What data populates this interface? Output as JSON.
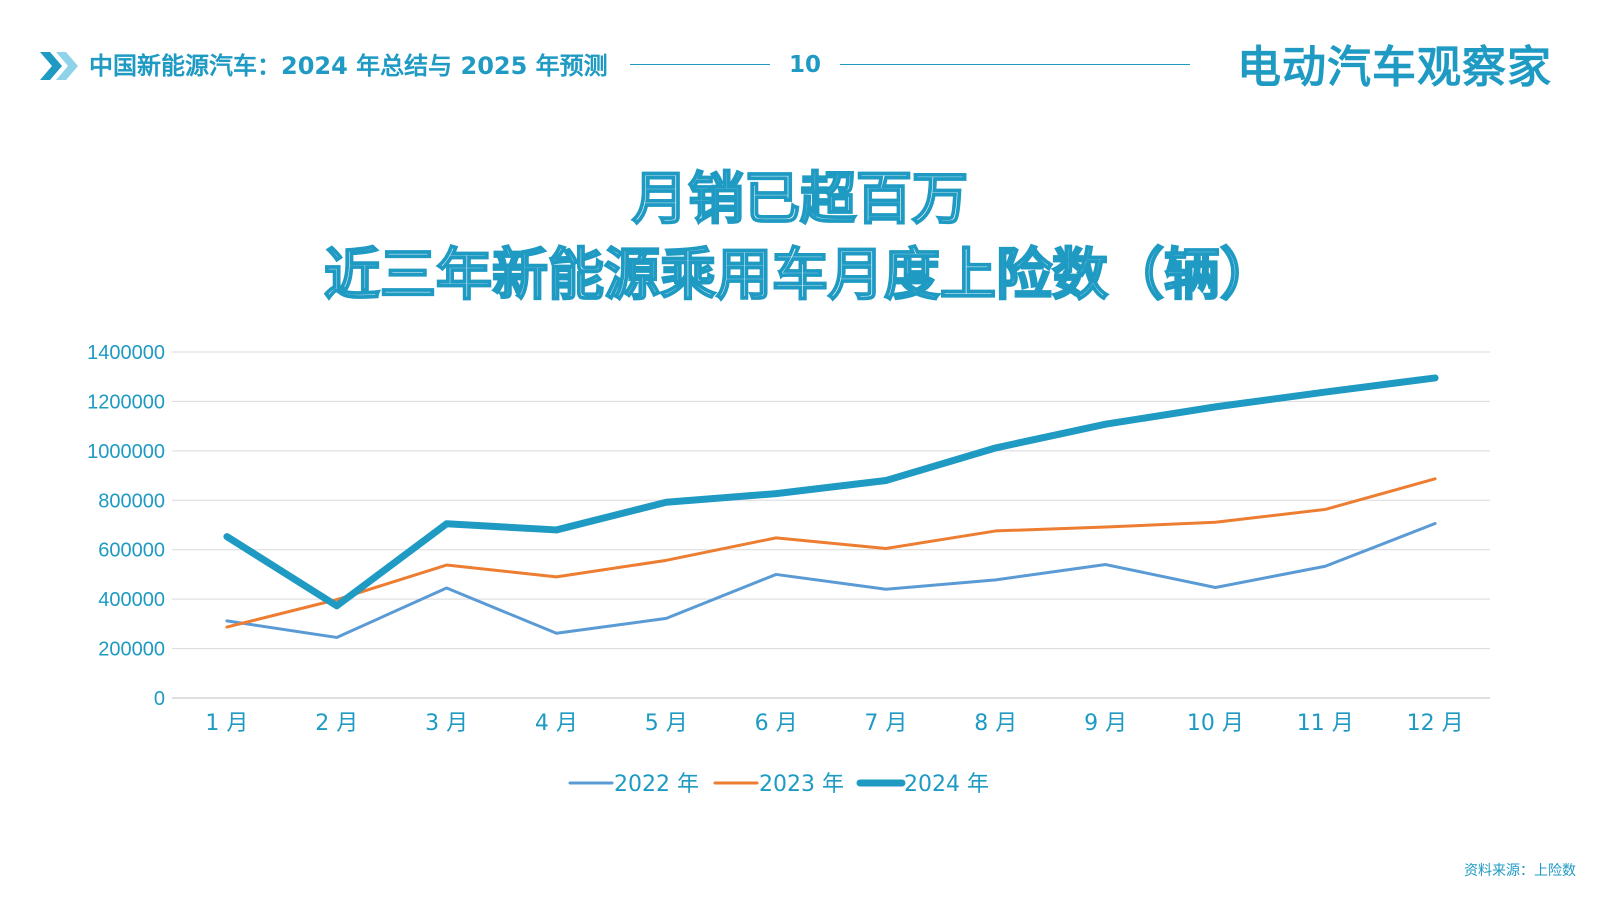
{
  "header": {
    "title": "中国新能源汽车：2024 年总结与 2025 年预测",
    "page_number": "10",
    "brand": "电动汽车观察家",
    "chevron_icon": "double-chevron-right-icon"
  },
  "colors": {
    "accent": "#1e9ac3",
    "series_2022": "#5b9bd5",
    "series_2023": "#ed7d31",
    "series_2024": "#1e9ac3"
  },
  "chart_data": {
    "type": "line",
    "title_lines": [
      "月销已超百万",
      "近三年新能源乘用车月度上险数（辆）"
    ],
    "categories": [
      "1 月",
      "2 月",
      "3 月",
      "4 月",
      "5 月",
      "6 月",
      "7 月",
      "8 月",
      "9 月",
      "10 月",
      "11 月",
      "12 月"
    ],
    "y_ticks": [
      "0",
      "200000",
      "400000",
      "600000",
      "800000",
      "1000000",
      "1200000",
      "1400000"
    ],
    "ylim": [
      0,
      1400000
    ],
    "grid": true,
    "legend_position": "bottom",
    "series": [
      {
        "name": "2022 年",
        "values": [
          312000,
          245000,
          445000,
          262000,
          322000,
          500000,
          440000,
          478000,
          540000,
          447000,
          533000,
          706000
        ]
      },
      {
        "name": "2023 年",
        "values": [
          287000,
          398000,
          538000,
          490000,
          557000,
          648000,
          605000,
          676000,
          692000,
          711000,
          763000,
          887000
        ]
      },
      {
        "name": "2024 年",
        "values": [
          653000,
          373000,
          705000,
          680000,
          792000,
          827000,
          880000,
          1012000,
          1108000,
          1178000,
          1238000,
          1295000
        ]
      }
    ]
  },
  "footer": {
    "source": "资料来源：上险数"
  }
}
